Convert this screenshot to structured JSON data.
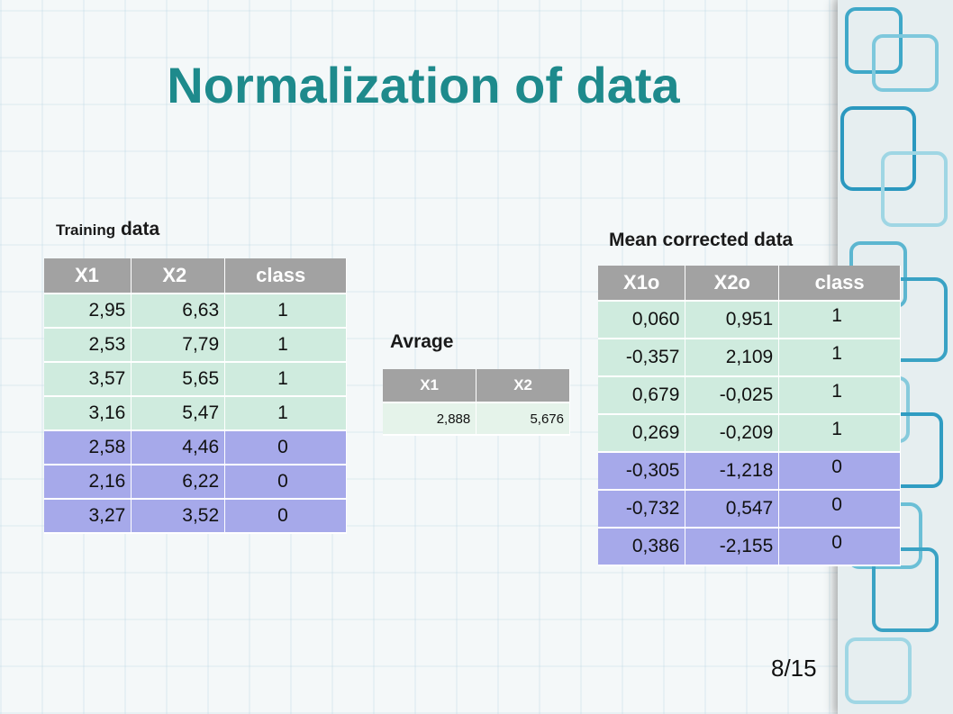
{
  "title": "Normalization of data",
  "training": {
    "caption_small": "Training",
    "caption_large": "data",
    "headers": [
      "X1",
      "X2",
      "class"
    ],
    "rows": [
      [
        "2,95",
        "6,63",
        "1"
      ],
      [
        "2,53",
        "7,79",
        "1"
      ],
      [
        "3,57",
        "5,65",
        "1"
      ],
      [
        "3,16",
        "5,47",
        "1"
      ],
      [
        "2,58",
        "4,46",
        "0"
      ],
      [
        "2,16",
        "6,22",
        "0"
      ],
      [
        "3,27",
        "3,52",
        "0"
      ]
    ]
  },
  "average": {
    "caption": "Avrage",
    "headers": [
      "X1",
      "X2"
    ],
    "values": [
      "2,888",
      "5,676"
    ]
  },
  "mean_corrected": {
    "caption": "Mean corrected data",
    "headers": [
      "X1o",
      "X2o",
      "class"
    ],
    "rows": [
      [
        "0,060",
        "0,951",
        "1"
      ],
      [
        "-0,357",
        "2,109",
        "1"
      ],
      [
        "0,679",
        "-0,025",
        "1"
      ],
      [
        "0,269",
        "-0,209",
        "1"
      ],
      [
        "-0,305",
        "-1,218",
        "0"
      ],
      [
        "-0,732",
        "0,547",
        "0"
      ],
      [
        "0,386",
        "-2,155",
        "0"
      ]
    ]
  },
  "page_number": "8/15",
  "colors": {
    "title": "#1e8a8c",
    "header_bg": "#a2a2a2",
    "class1_bg": "#cfebde",
    "class0_bg": "#a6a9ea"
  }
}
